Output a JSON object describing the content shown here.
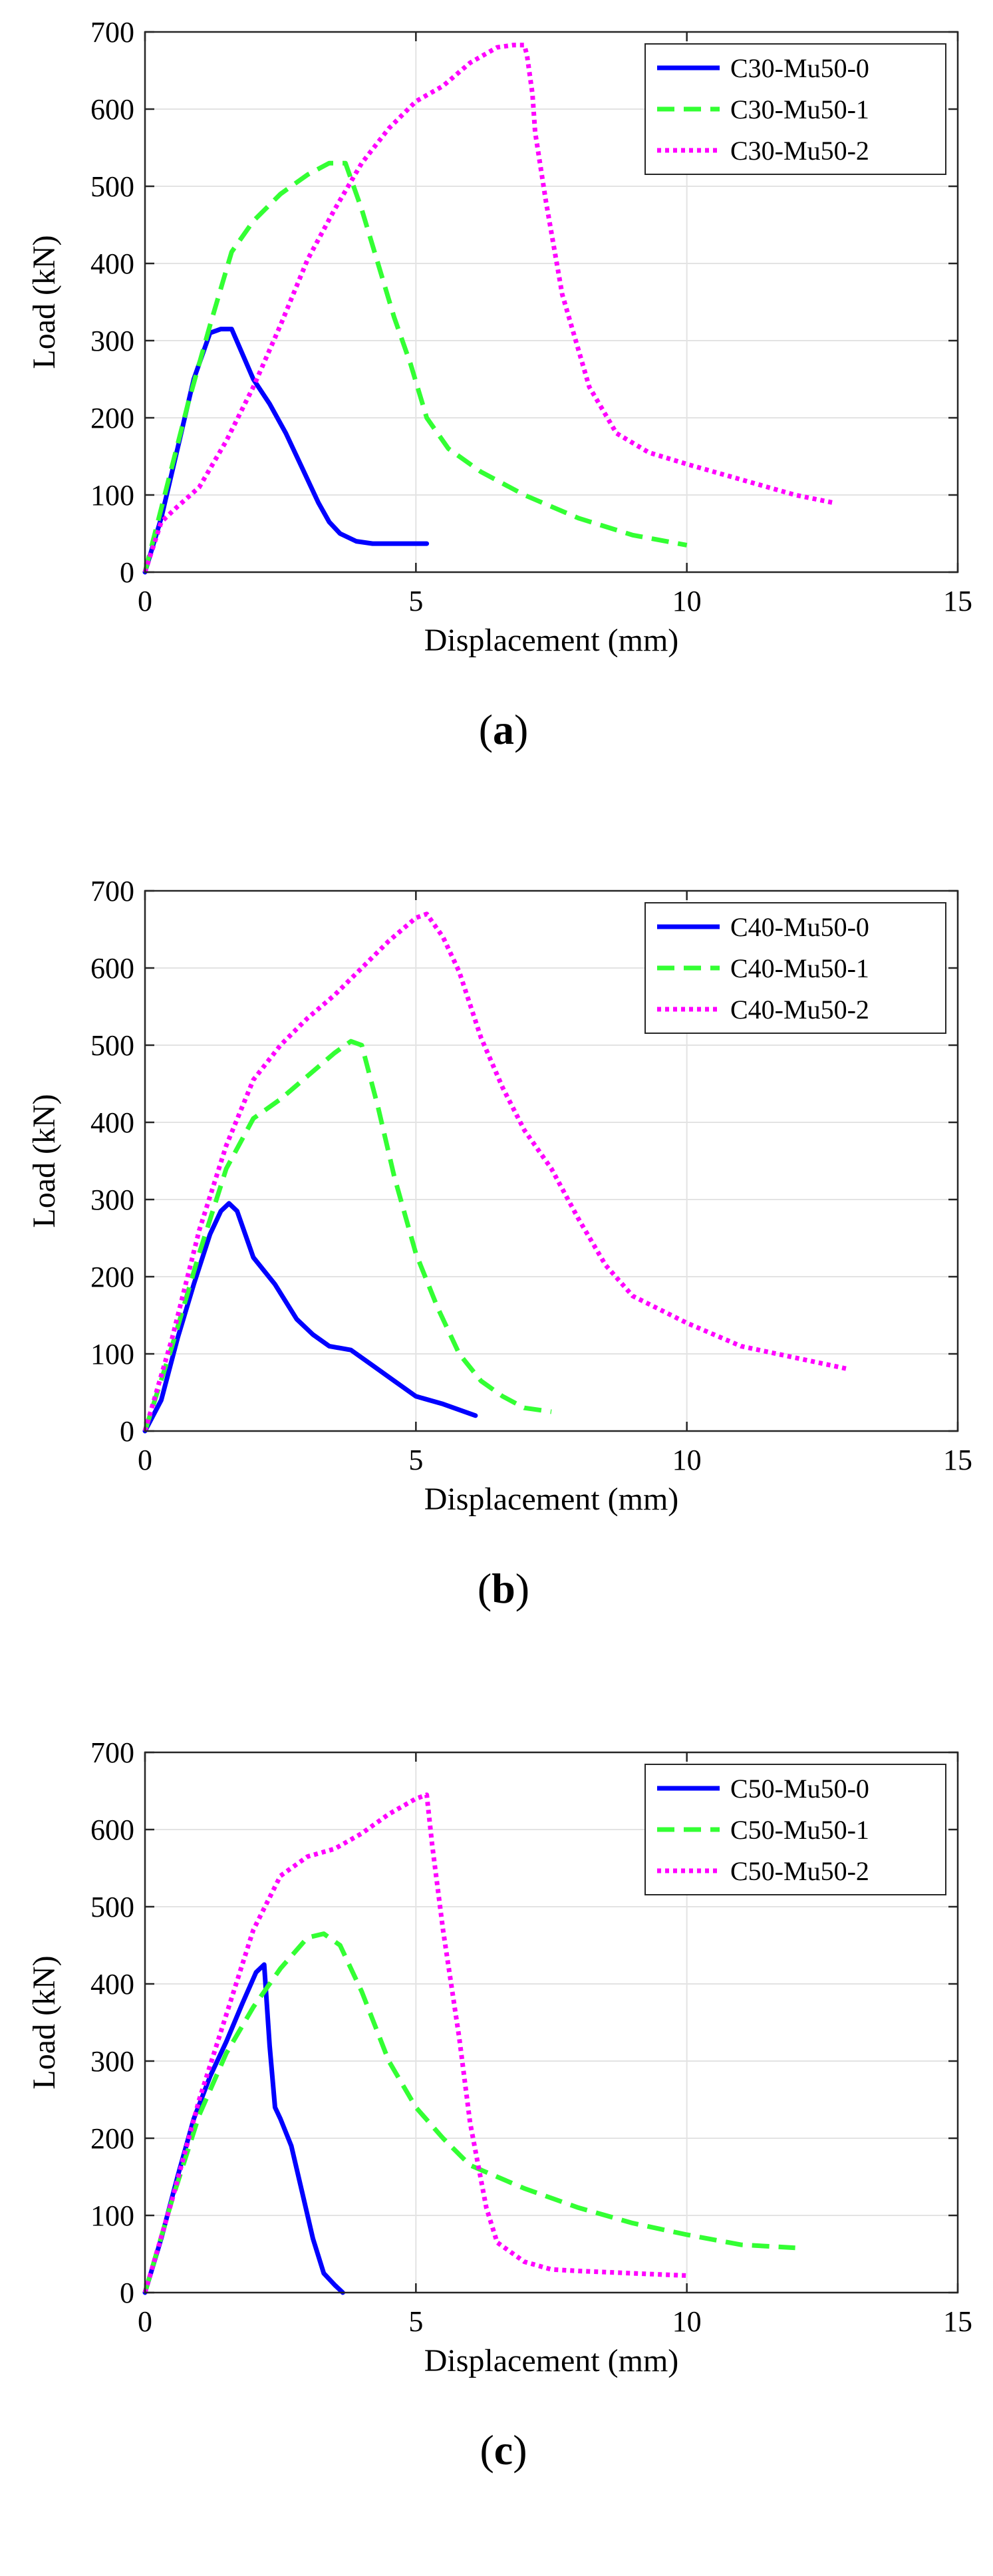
{
  "chart_data": [
    {
      "type": "line",
      "panel_label": "(a)",
      "panel_letter": "a",
      "xlabel": "Displacement (mm)",
      "ylabel": "Load (kN)",
      "xlim": [
        0,
        15
      ],
      "ylim": [
        0,
        700
      ],
      "xticks": [
        0,
        5,
        10,
        15
      ],
      "yticks": [
        0,
        100,
        200,
        300,
        400,
        500,
        600,
        700
      ],
      "grid": true,
      "legend_position": "top-right",
      "series": [
        {
          "name": "C30-Mu50-0",
          "color": "#0000ff",
          "dash": "solid",
          "x": [
            0,
            0.3,
            0.6,
            0.9,
            1.2,
            1.4,
            1.6,
            2.0,
            2.3,
            2.6,
            2.9,
            3.2,
            3.4,
            3.6,
            3.9,
            4.2,
            4.6,
            5.2
          ],
          "y": [
            0,
            70,
            160,
            250,
            310,
            315,
            315,
            250,
            218,
            180,
            135,
            90,
            65,
            50,
            40,
            37,
            37,
            37
          ]
        },
        {
          "name": "C30-Mu50-1",
          "color": "#33ff33",
          "dash": "dashed",
          "x": [
            0,
            0.4,
            0.8,
            1.2,
            1.6,
            2.0,
            2.5,
            3.0,
            3.4,
            3.7,
            4.0,
            4.3,
            4.6,
            4.9,
            5.2,
            5.6,
            6.2,
            7.0,
            8.0,
            9.0,
            10.0
          ],
          "y": [
            0,
            110,
            220,
            320,
            415,
            455,
            490,
            515,
            530,
            530,
            470,
            400,
            330,
            270,
            200,
            160,
            130,
            100,
            70,
            48,
            35
          ]
        },
        {
          "name": "C30-Mu50-2",
          "color": "#ff00ff",
          "dash": "dotted",
          "x": [
            0,
            0.3,
            0.6,
            1.0,
            1.5,
            2.0,
            2.5,
            3.0,
            3.5,
            4.0,
            4.5,
            5.0,
            5.5,
            6.0,
            6.5,
            6.8,
            7.0,
            7.05,
            7.15,
            7.2,
            7.4,
            7.7,
            8.2,
            8.7,
            9.3,
            10.0,
            11.0,
            12.0,
            12.7
          ],
          "y": [
            0,
            65,
            85,
            110,
            170,
            240,
            320,
            405,
            470,
            530,
            575,
            610,
            630,
            660,
            680,
            683,
            683,
            670,
            620,
            570,
            480,
            360,
            240,
            180,
            155,
            140,
            120,
            100,
            90
          ]
        }
      ]
    },
    {
      "type": "line",
      "panel_label": "(b)",
      "panel_letter": "b",
      "xlabel": "Displacement (mm)",
      "ylabel": "Load (kN)",
      "xlim": [
        0,
        15
      ],
      "ylim": [
        0,
        700
      ],
      "xticks": [
        0,
        5,
        10,
        15
      ],
      "yticks": [
        0,
        100,
        200,
        300,
        400,
        500,
        600,
        700
      ],
      "grid": true,
      "legend_position": "top-right",
      "series": [
        {
          "name": "C40-Mu50-0",
          "color": "#0000ff",
          "dash": "solid",
          "x": [
            0,
            0.3,
            0.6,
            0.9,
            1.2,
            1.4,
            1.55,
            1.7,
            2.0,
            2.4,
            2.8,
            3.1,
            3.4,
            3.8,
            4.2,
            4.6,
            5.0,
            5.5,
            6.1
          ],
          "y": [
            0,
            40,
            120,
            190,
            255,
            285,
            295,
            285,
            225,
            190,
            145,
            125,
            110,
            105,
            85,
            65,
            45,
            35,
            20
          ]
        },
        {
          "name": "C40-Mu50-1",
          "color": "#33ff33",
          "dash": "dashed",
          "x": [
            0,
            0.5,
            1.0,
            1.5,
            2.0,
            2.5,
            3.0,
            3.5,
            3.8,
            4.0,
            4.3,
            4.6,
            5.0,
            5.4,
            5.8,
            6.2,
            6.6,
            7.0,
            7.5
          ],
          "y": [
            0,
            110,
            230,
            340,
            405,
            430,
            460,
            490,
            505,
            500,
            420,
            330,
            230,
            160,
            100,
            65,
            45,
            30,
            25
          ]
        },
        {
          "name": "C40-Mu50-2",
          "color": "#ff00ff",
          "dash": "dotted",
          "x": [
            0,
            0.5,
            1.0,
            1.5,
            2.0,
            2.5,
            3.0,
            3.5,
            4.0,
            4.5,
            5.0,
            5.2,
            5.5,
            5.8,
            6.2,
            6.6,
            7.0,
            7.5,
            8.0,
            8.5,
            9.0,
            10.0,
            11.0,
            12.0,
            13.0
          ],
          "y": [
            0,
            120,
            260,
            370,
            455,
            500,
            535,
            565,
            600,
            635,
            665,
            670,
            640,
            595,
            510,
            445,
            390,
            340,
            275,
            215,
            175,
            140,
            110,
            95,
            80
          ]
        }
      ]
    },
    {
      "type": "line",
      "panel_label": "(c)",
      "panel_letter": "c",
      "xlabel": "Displacement (mm)",
      "ylabel": "Load (kN)",
      "xlim": [
        0,
        15
      ],
      "ylim": [
        0,
        700
      ],
      "xticks": [
        0,
        5,
        10,
        15
      ],
      "yticks": [
        0,
        100,
        200,
        300,
        400,
        500,
        600,
        700
      ],
      "grid": true,
      "legend_position": "top-right",
      "series": [
        {
          "name": "C50-Mu50-0",
          "color": "#0000ff",
          "dash": "solid",
          "x": [
            0,
            0.3,
            0.6,
            0.9,
            1.2,
            1.5,
            1.8,
            2.05,
            2.2,
            2.3,
            2.4,
            2.5,
            2.7,
            2.9,
            3.1,
            3.3,
            3.5,
            3.65
          ],
          "y": [
            0,
            70,
            150,
            225,
            280,
            325,
            375,
            415,
            425,
            320,
            240,
            225,
            190,
            130,
            70,
            25,
            10,
            0
          ]
        },
        {
          "name": "C50-Mu50-1",
          "color": "#33ff33",
          "dash": "dashed",
          "x": [
            0,
            0.5,
            1.0,
            1.5,
            2.0,
            2.5,
            3.0,
            3.3,
            3.6,
            4.0,
            4.5,
            5.0,
            5.5,
            6.0,
            7.0,
            8.0,
            9.0,
            10.0,
            11.0,
            12.0
          ],
          "y": [
            0,
            120,
            230,
            310,
            370,
            420,
            460,
            465,
            450,
            390,
            300,
            240,
            200,
            165,
            135,
            110,
            90,
            75,
            62,
            58
          ]
        },
        {
          "name": "C50-Mu50-2",
          "color": "#ff00ff",
          "dash": "dotted",
          "x": [
            0,
            0.5,
            1.0,
            1.5,
            2.0,
            2.5,
            3.0,
            3.5,
            4.0,
            4.5,
            5.0,
            5.2,
            5.3,
            5.5,
            5.8,
            6.0,
            6.3,
            6.5,
            7.0,
            7.5,
            8.0,
            9.0,
            10.0
          ],
          "y": [
            0,
            120,
            250,
            360,
            470,
            540,
            565,
            575,
            595,
            620,
            640,
            645,
            580,
            470,
            330,
            220,
            110,
            65,
            40,
            30,
            28,
            25,
            22
          ]
        }
      ]
    }
  ]
}
